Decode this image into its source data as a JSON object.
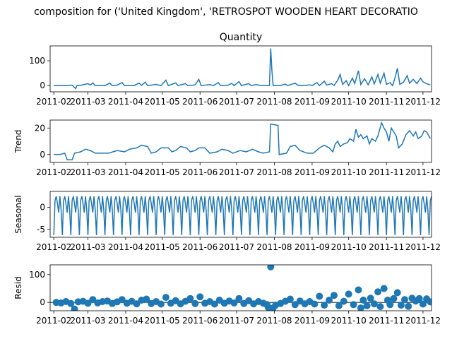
{
  "figure": {
    "suptitle": "composition for ('United Kingdom', 'RETROSPOT WOODEN HEART DECORATIO"
  },
  "chart_data": [
    {
      "type": "line",
      "title": "Quantity",
      "ylabel": "",
      "ylim": [
        -25,
        160
      ],
      "yticks": [
        0,
        100
      ],
      "x_ticklabels": [
        "2011-02",
        "2011-03",
        "2011-04",
        "2011-05",
        "2011-06",
        "2011-07",
        "2011-08",
        "2011-09",
        "2011-10",
        "2011-11",
        "2011-12"
      ],
      "x_range_days": [
        -3,
        310
      ],
      "color": "#1f77b4",
      "series": [
        {
          "values": [
            [
              0,
              0
            ],
            [
              10,
              0
            ],
            [
              15,
              2
            ],
            [
              18,
              -12
            ],
            [
              19,
              0
            ],
            [
              22,
              1
            ],
            [
              28,
              8
            ],
            [
              30,
              2
            ],
            [
              32,
              11
            ],
            [
              34,
              0
            ],
            [
              42,
              0
            ],
            [
              46,
              10
            ],
            [
              48,
              0
            ],
            [
              52,
              2
            ],
            [
              56,
              12
            ],
            [
              58,
              0
            ],
            [
              66,
              0
            ],
            [
              70,
              10
            ],
            [
              72,
              1
            ],
            [
              75,
              14
            ],
            [
              77,
              0
            ],
            [
              84,
              5
            ],
            [
              88,
              0
            ],
            [
              92,
              22
            ],
            [
              94,
              0
            ],
            [
              100,
              11
            ],
            [
              102,
              0
            ],
            [
              108,
              8
            ],
            [
              110,
              0
            ],
            [
              116,
              3
            ],
            [
              119,
              25
            ],
            [
              121,
              0
            ],
            [
              128,
              4
            ],
            [
              131,
              0
            ],
            [
              135,
              12
            ],
            [
              137,
              0
            ],
            [
              143,
              2
            ],
            [
              146,
              9
            ],
            [
              148,
              0
            ],
            [
              152,
              16
            ],
            [
              154,
              0
            ],
            [
              160,
              8
            ],
            [
              162,
              0
            ],
            [
              166,
              4
            ],
            [
              170,
              0
            ],
            [
              174,
              0
            ],
            [
              177,
              0
            ],
            [
              178,
              150
            ],
            [
              179,
              60
            ],
            [
              180,
              0
            ],
            [
              186,
              0
            ],
            [
              190,
              6
            ],
            [
              192,
              0
            ],
            [
              198,
              10
            ],
            [
              200,
              2
            ],
            [
              203,
              0
            ],
            [
              210,
              3
            ],
            [
              212,
              0
            ],
            [
              216,
              12
            ],
            [
              218,
              0
            ],
            [
              222,
              18
            ],
            [
              224,
              2
            ],
            [
              228,
              8
            ],
            [
              230,
              0
            ],
            [
              233,
              22
            ],
            [
              235,
              45
            ],
            [
              237,
              5
            ],
            [
              240,
              20
            ],
            [
              242,
              0
            ],
            [
              245,
              30
            ],
            [
              247,
              8
            ],
            [
              250,
              60
            ],
            [
              252,
              4
            ],
            [
              255,
              28
            ],
            [
              258,
              3
            ],
            [
              261,
              35
            ],
            [
              263,
              7
            ],
            [
              266,
              45
            ],
            [
              268,
              10
            ],
            [
              271,
              50
            ],
            [
              273,
              5
            ],
            [
              276,
              12
            ],
            [
              278,
              0
            ],
            [
              280,
              30
            ],
            [
              282,
              70
            ],
            [
              284,
              5
            ],
            [
              287,
              14
            ],
            [
              290,
              40
            ],
            [
              292,
              10
            ],
            [
              295,
              25
            ],
            [
              298,
              8
            ],
            [
              301,
              30
            ],
            [
              303,
              15
            ],
            [
              306,
              8
            ],
            [
              309,
              3
            ]
          ]
        }
      ]
    },
    {
      "type": "line",
      "title": "",
      "ylabel": "Trend",
      "ylim": [
        -6,
        26
      ],
      "yticks": [
        0,
        20
      ],
      "x_ticklabels": [
        "2011-02",
        "2011-03",
        "2011-04",
        "2011-05",
        "2011-06",
        "2011-07",
        "2011-08",
        "2011-09",
        "2011-10",
        "2011-11",
        "2011-12"
      ],
      "x_range_days": [
        -3,
        310
      ],
      "color": "#1f77b4",
      "series": [
        {
          "values": [
            [
              0,
              0
            ],
            [
              5,
              0
            ],
            [
              9,
              1
            ],
            [
              11,
              -4
            ],
            [
              15,
              -4
            ],
            [
              17,
              1
            ],
            [
              22,
              2
            ],
            [
              26,
              4
            ],
            [
              30,
              3
            ],
            [
              34,
              1
            ],
            [
              45,
              1
            ],
            [
              52,
              3
            ],
            [
              58,
              2
            ],
            [
              62,
              4
            ],
            [
              68,
              5
            ],
            [
              72,
              7
            ],
            [
              77,
              6
            ],
            [
              80,
              1
            ],
            [
              84,
              2
            ],
            [
              88,
              5
            ],
            [
              94,
              5
            ],
            [
              97,
              2
            ],
            [
              100,
              3
            ],
            [
              104,
              6
            ],
            [
              109,
              5
            ],
            [
              112,
              2
            ],
            [
              116,
              3
            ],
            [
              119,
              5
            ],
            [
              124,
              5
            ],
            [
              128,
              1
            ],
            [
              134,
              2
            ],
            [
              138,
              4
            ],
            [
              143,
              3
            ],
            [
              147,
              1
            ],
            [
              153,
              3
            ],
            [
              158,
              2
            ],
            [
              163,
              4
            ],
            [
              168,
              2
            ],
            [
              172,
              1
            ],
            [
              177,
              2
            ],
            [
              178,
              23
            ],
            [
              184,
              22
            ],
            [
              185,
              0
            ],
            [
              191,
              1
            ],
            [
              194,
              6
            ],
            [
              198,
              7
            ],
            [
              202,
              3
            ],
            [
              208,
              1
            ],
            [
              213,
              1
            ],
            [
              218,
              5
            ],
            [
              222,
              7
            ],
            [
              226,
              5
            ],
            [
              229,
              2
            ],
            [
              231,
              8
            ],
            [
              233,
              10
            ],
            [
              235,
              6
            ],
            [
              238,
              8
            ],
            [
              241,
              9
            ],
            [
              243,
              12
            ],
            [
              246,
              10
            ],
            [
              248,
              19
            ],
            [
              250,
              13
            ],
            [
              252,
              15
            ],
            [
              254,
              12
            ],
            [
              257,
              14
            ],
            [
              259,
              8
            ],
            [
              261,
              12
            ],
            [
              264,
              10
            ],
            [
              266,
              14
            ],
            [
              269,
              24
            ],
            [
              271,
              20
            ],
            [
              273,
              17
            ],
            [
              275,
              10
            ],
            [
              277,
              20
            ],
            [
              279,
              17
            ],
            [
              281,
              14
            ],
            [
              283,
              5
            ],
            [
              286,
              8
            ],
            [
              289,
              15
            ],
            [
              292,
              18
            ],
            [
              295,
              14
            ],
            [
              297,
              17
            ],
            [
              299,
              12
            ],
            [
              302,
              14
            ],
            [
              304,
              18
            ],
            [
              306,
              17
            ],
            [
              309,
              12
            ]
          ]
        }
      ]
    },
    {
      "type": "line",
      "title": "",
      "ylabel": "Seasonal",
      "ylim": [
        -6.8,
        3.6
      ],
      "yticks": [
        -5,
        0
      ],
      "x_ticklabels": [
        "2011-02",
        "2011-03",
        "2011-04",
        "2011-05",
        "2011-06",
        "2011-07",
        "2011-08",
        "2011-09",
        "2011-10",
        "2011-11",
        "2011-12"
      ],
      "x_range_days": [
        -3,
        310
      ],
      "period_days": 7,
      "period_pattern": [
        -6.3,
        1.5,
        2.5,
        0.8,
        -1.2,
        2.5,
        -0.5
      ],
      "color": "#1f77b4",
      "series": []
    },
    {
      "type": "scatter",
      "title": "",
      "ylabel": "Resid",
      "ylim": [
        -30,
        135
      ],
      "yticks": [
        0,
        100
      ],
      "x_ticklabels": [
        "2011-02",
        "2011-03",
        "2011-04",
        "2011-05",
        "2011-06",
        "2011-07",
        "2011-08",
        "2011-09",
        "2011-10",
        "2011-11",
        "2011-12"
      ],
      "x_range_days": [
        -3,
        310
      ],
      "color": "#1f77b4",
      "series": [
        {
          "values": [
            [
              2,
              0
            ],
            [
              6,
              -2
            ],
            [
              10,
              3
            ],
            [
              14,
              -4
            ],
            [
              17,
              -24
            ],
            [
              20,
              2
            ],
            [
              24,
              4
            ],
            [
              28,
              -3
            ],
            [
              32,
              10
            ],
            [
              36,
              -2
            ],
            [
              40,
              3
            ],
            [
              44,
              5
            ],
            [
              48,
              -4
            ],
            [
              52,
              2
            ],
            [
              56,
              10
            ],
            [
              60,
              -3
            ],
            [
              64,
              4
            ],
            [
              68,
              -5
            ],
            [
              72,
              8
            ],
            [
              76,
              12
            ],
            [
              80,
              -4
            ],
            [
              84,
              3
            ],
            [
              88,
              -6
            ],
            [
              92,
              18
            ],
            [
              96,
              -3
            ],
            [
              100,
              6
            ],
            [
              104,
              -5
            ],
            [
              108,
              4
            ],
            [
              112,
              14
            ],
            [
              116,
              -4
            ],
            [
              120,
              20
            ],
            [
              124,
              -3
            ],
            [
              128,
              3
            ],
            [
              132,
              -6
            ],
            [
              136,
              8
            ],
            [
              140,
              -3
            ],
            [
              144,
              5
            ],
            [
              148,
              -2
            ],
            [
              152,
              14
            ],
            [
              156,
              -4
            ],
            [
              160,
              6
            ],
            [
              164,
              -5
            ],
            [
              168,
              3
            ],
            [
              172,
              -3
            ],
            [
              175,
              -8
            ],
            [
              176,
              -18
            ],
            [
              178,
              128
            ],
            [
              180,
              -20
            ],
            [
              182,
              -10
            ],
            [
              186,
              -4
            ],
            [
              190,
              4
            ],
            [
              194,
              12
            ],
            [
              198,
              -8
            ],
            [
              202,
              5
            ],
            [
              206,
              -5
            ],
            [
              210,
              3
            ],
            [
              214,
              -6
            ],
            [
              218,
              22
            ],
            [
              222,
              -10
            ],
            [
              226,
              8
            ],
            [
              230,
              25
            ],
            [
              234,
              -12
            ],
            [
              238,
              4
            ],
            [
              242,
              30
            ],
            [
              246,
              -8
            ],
            [
              250,
              45
            ],
            [
              252,
              -20
            ],
            [
              254,
              8
            ],
            [
              257,
              -12
            ],
            [
              260,
              15
            ],
            [
              263,
              -5
            ],
            [
              266,
              38
            ],
            [
              268,
              -15
            ],
            [
              271,
              50
            ],
            [
              274,
              8
            ],
            [
              276,
              -8
            ],
            [
              279,
              14
            ],
            [
              282,
              35
            ],
            [
              285,
              -10
            ],
            [
              288,
              10
            ],
            [
              291,
              -14
            ],
            [
              294,
              15
            ],
            [
              297,
              5
            ],
            [
              300,
              14
            ],
            [
              303,
              -6
            ],
            [
              306,
              13
            ],
            [
              309,
              2
            ]
          ]
        }
      ]
    }
  ]
}
